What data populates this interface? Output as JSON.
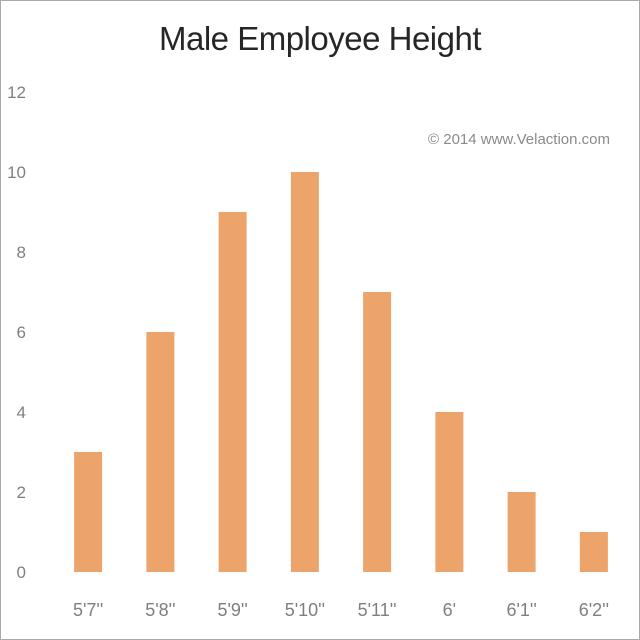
{
  "chart_data": {
    "type": "bar",
    "title": "Male Employee Height",
    "xlabel": "",
    "ylabel": "",
    "categories": [
      "5'7''",
      "5'8''",
      "5'9''",
      "5'10''",
      "5'11''",
      "6'",
      "6'1''",
      "6'2''"
    ],
    "values": [
      3,
      6,
      9,
      10,
      7,
      4,
      2,
      1
    ],
    "ylim": [
      0,
      12
    ],
    "yticks": [
      0,
      2,
      4,
      6,
      8,
      10,
      12
    ],
    "grid": false,
    "legend": "none",
    "bar_color": "#eda46b",
    "annotation": "© 2014 www.Velaction.com"
  }
}
